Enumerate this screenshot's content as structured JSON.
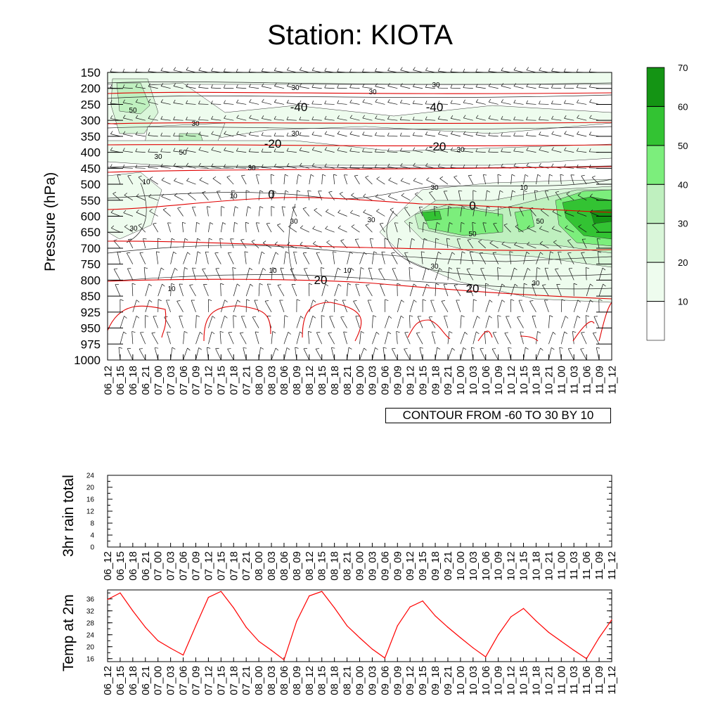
{
  "title": "Station: KIOTA",
  "chart_data": [
    {
      "type": "heatmap",
      "name": "wind-cross-section",
      "ylabel": "Pressure (hPa)",
      "pressure_levels": [
        150,
        200,
        250,
        300,
        350,
        400,
        450,
        500,
        550,
        600,
        650,
        700,
        750,
        800,
        850,
        925,
        950,
        975,
        1000
      ],
      "time_labels": [
        "06_12",
        "06_15",
        "06_18",
        "06_21",
        "07_00",
        "07_03",
        "07_06",
        "07_09",
        "07_12",
        "07_15",
        "07_18",
        "07_21",
        "08_00",
        "08_03",
        "08_06",
        "08_09",
        "08_12",
        "08_15",
        "08_18",
        "08_21",
        "09_00",
        "09_03",
        "09_06",
        "09_09",
        "09_12",
        "09_15",
        "09_18",
        "09_21",
        "10_00",
        "10_03",
        "10_06",
        "10_09",
        "10_12",
        "10_15",
        "10_18",
        "10_21",
        "11_00",
        "11_03",
        "11_06",
        "11_09",
        "11_12"
      ],
      "colorbar": {
        "levels": [
          10,
          20,
          30,
          40,
          50,
          60,
          70
        ],
        "colors": [
          "#ffffff",
          "#eefcee",
          "#d9f6d9",
          "#bff0bf",
          "#7cee7c",
          "#33c333",
          "#149414"
        ]
      },
      "temperature_contour_labels": [
        {
          "value": "-40"
        },
        {
          "value": "-40"
        },
        {
          "value": "-20"
        },
        {
          "value": "-20"
        },
        {
          "value": "0"
        },
        {
          "value": "0"
        },
        {
          "value": "20"
        },
        {
          "value": "20"
        }
      ],
      "wind_speed_labels": [
        "30",
        "30",
        "30",
        "50",
        "30",
        "30",
        "50",
        "30",
        "30",
        "10",
        "30",
        "10",
        "10",
        "30",
        "30",
        "30",
        "50",
        "50",
        "10",
        "10",
        "10",
        "30",
        "30",
        "30"
      ],
      "note": "CONTOUR FROM -60 TO 30 BY 10"
    },
    {
      "type": "line",
      "name": "rain-3hr",
      "ylabel": "3hr rain total",
      "yticks": [
        0,
        4,
        8,
        12,
        16,
        20,
        24
      ],
      "ylim": [
        0,
        24
      ],
      "x": [
        "06_12",
        "06_15",
        "06_18",
        "06_21",
        "07_00",
        "07_03",
        "07_06",
        "07_09",
        "07_12",
        "07_15",
        "07_18",
        "07_21",
        "08_00",
        "08_03",
        "08_06",
        "08_09",
        "08_12",
        "08_15",
        "08_18",
        "08_21",
        "09_00",
        "09_03",
        "09_06",
        "09_09",
        "09_12",
        "09_15",
        "09_18",
        "09_21",
        "10_00",
        "10_03",
        "10_06",
        "10_09",
        "10_12",
        "10_15",
        "10_18",
        "10_21",
        "11_00",
        "11_03",
        "11_06",
        "11_09",
        "11_12"
      ],
      "values": [
        0,
        0,
        0,
        0,
        0,
        0,
        0,
        0,
        0,
        0,
        0,
        0,
        0,
        0,
        0,
        0,
        0,
        0,
        0,
        0,
        0,
        0,
        0,
        0,
        0,
        0,
        0,
        0,
        0,
        0,
        0,
        0,
        0,
        0,
        0,
        0,
        0,
        0,
        0,
        0,
        0
      ]
    },
    {
      "type": "line",
      "name": "temp-2m",
      "ylabel": "Temp at 2m",
      "yticks": [
        16,
        20,
        24,
        28,
        32,
        36
      ],
      "ylim": [
        15,
        39
      ],
      "line_color": "#ff0000",
      "x": [
        "06_12",
        "06_15",
        "06_18",
        "06_21",
        "07_00",
        "07_03",
        "07_06",
        "07_09",
        "07_12",
        "07_15",
        "07_18",
        "07_21",
        "08_00",
        "08_03",
        "08_06",
        "08_09",
        "08_12",
        "08_15",
        "08_18",
        "08_21",
        "09_00",
        "09_03",
        "09_06",
        "09_09",
        "09_12",
        "09_15",
        "09_18",
        "09_21",
        "10_00",
        "10_03",
        "10_06",
        "10_09",
        "10_12",
        "10_15",
        "10_18",
        "10_21",
        "11_00",
        "11_03",
        "11_06",
        "11_09",
        "11_12"
      ],
      "values": [
        35.8,
        38,
        32,
        26.5,
        22,
        19.5,
        17.2,
        27,
        36.5,
        38.5,
        33,
        26.5,
        21.8,
        18.8,
        15.6,
        28.5,
        37,
        38.5,
        33,
        27,
        23,
        19.2,
        16.2,
        27,
        33.3,
        35.3,
        30.3,
        26.5,
        23,
        19.6,
        16.6,
        24,
        30,
        32.8,
        28.6,
        24.8,
        21.8,
        18.8,
        16,
        23,
        29
      ]
    }
  ]
}
